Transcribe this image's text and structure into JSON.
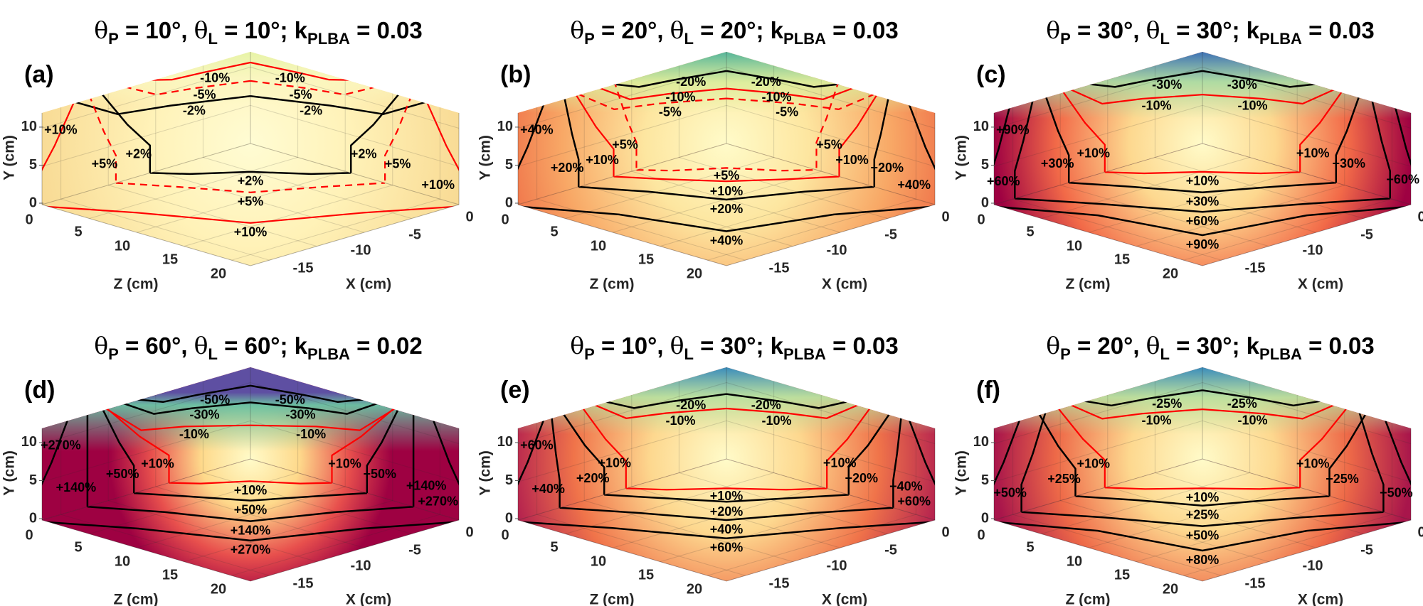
{
  "title_symbols": {
    "theta": "θ",
    "p": "P",
    "l": "L",
    "k": "k",
    "plba": "PLBA",
    "eq": " = ",
    "comma": ", ",
    "semicolon": "; "
  },
  "chart_data": {
    "type": "contour",
    "description_units": "percent change contours on 3D box walls and floor",
    "axes": {
      "y_label": "Y (cm)",
      "z_label": "Z (cm)",
      "x_label": "X (cm)",
      "y_ticks": [
        "0",
        "5",
        "10"
      ],
      "z_ticks": [
        "0",
        "5",
        "10",
        "15",
        "20"
      ],
      "x_ticks": [
        "0",
        "-5",
        "-10",
        "-15"
      ],
      "y_range": [
        0,
        12
      ],
      "z_range": [
        0,
        22
      ],
      "x_range": [
        0,
        -22
      ]
    },
    "panels": [
      {
        "id": "a",
        "label": "(a)",
        "theta_p": "10°",
        "theta_l": "10°",
        "k_plba": "0.03",
        "colors": {
          "center": "#fffcd3",
          "mid": "#fff2b8",
          "warm": "#f9dd98",
          "edge": "#f4cd85",
          "top": "#e6f3a6",
          "top_fade": "#f9f7c0"
        },
        "contours": [
          {
            "level": "-10%",
            "kind": "neg",
            "color": "#ff0000",
            "dashed": false,
            "y_center_cm": 10.6,
            "y_end_cm": 12.3,
            "reach_cm": 11,
            "labels": [
              "left",
              "right"
            ]
          },
          {
            "level": "-5%",
            "kind": "neg",
            "color": "#ff0000",
            "dashed": true,
            "y_center_cm": 8.2,
            "y_end_cm": 12.2,
            "reach_cm": 13.2,
            "labels": [
              "left",
              "right"
            ]
          },
          {
            "level": "-2%",
            "kind": "neg",
            "color": "#000000",
            "dashed": false,
            "y_center_cm": 6.2,
            "y_end_cm": 12.3,
            "reach_cm": 18.7,
            "labels": [
              "left",
              "right"
            ]
          },
          {
            "level": "+2%",
            "kind": "pos",
            "color": "#000000",
            "dashed": false,
            "wall_cm": 10.6,
            "lean": 1.5,
            "floor_cm": 5.1,
            "labels": [
              "left",
              "floor",
              "right"
            ]
          },
          {
            "level": "+5%",
            "kind": "pos",
            "color": "#ff0000",
            "dashed": true,
            "wall_cm": 14.2,
            "lean": 1.2,
            "floor_cm": 8.8,
            "labels": [
              "left",
              "floor",
              "right"
            ]
          },
          {
            "level": "+10%",
            "kind": "pos",
            "color": "#ff0000",
            "dashed": false,
            "wall_cm": 22.5,
            "lean": 0.82,
            "floor_cm": 14.3,
            "labels": [
              "left",
              "floor",
              "right"
            ]
          }
        ]
      },
      {
        "id": "b",
        "label": "(b)",
        "theta_p": "20°",
        "theta_l": "20°",
        "k_plba": "0.03",
        "colors": {
          "center": "#fffbc9",
          "mid": "#fde6a0",
          "warm": "#f8a866",
          "edge": "#ee6a45",
          "top": "#55b59b",
          "top_fade": "#d8ee9b"
        },
        "contours": [
          {
            "level": "-20%",
            "kind": "neg",
            "color": "#000000",
            "dashed": false,
            "y_center_cm": 9.5,
            "y_end_cm": 12.3,
            "reach_cm": 12.3,
            "labels": [
              "left",
              "right"
            ]
          },
          {
            "level": "-10%",
            "kind": "neg",
            "color": "#ff0000",
            "dashed": false,
            "y_center_cm": 7.2,
            "y_end_cm": 12.3,
            "reach_cm": 13.6,
            "labels": [
              "left",
              "right"
            ]
          },
          {
            "level": "-5%",
            "kind": "neg",
            "color": "#ff0000",
            "dashed": true,
            "y_center_cm": 5.9,
            "y_end_cm": 12.3,
            "reach_cm": 15.8,
            "labels": [
              "left",
              "right"
            ]
          },
          {
            "level": "+5%",
            "kind": "pos",
            "color": "#ff0000",
            "dashed": true,
            "wall_cm": 9.5,
            "lean": 1.25,
            "floor_cm": 4.4,
            "labels": [
              "left",
              "floor",
              "right"
            ]
          },
          {
            "level": "+10%",
            "kind": "pos",
            "color": "#ff0000",
            "dashed": false,
            "wall_cm": 11.9,
            "lean": 1.35,
            "floor_cm": 6.8,
            "labels": [
              "left",
              "floor",
              "right"
            ]
          },
          {
            "level": "+20%",
            "kind": "pos",
            "color": "#000000",
            "dashed": false,
            "wall_cm": 15.6,
            "lean": 1.1,
            "floor_cm": 10.1,
            "labels": [
              "left",
              "floor",
              "right"
            ]
          },
          {
            "level": "+40%",
            "kind": "pos",
            "color": "#000000",
            "dashed": false,
            "wall_cm": 22.5,
            "lean": 0.85,
            "floor_cm": 15.8,
            "labels": [
              "left",
              "floor",
              "right"
            ]
          }
        ]
      },
      {
        "id": "c",
        "label": "(c)",
        "theta_p": "30°",
        "theta_l": "30°",
        "k_plba": "0.03",
        "colors": {
          "center": "#fffbc9",
          "mid": "#fdd88f",
          "warm": "#f26a48",
          "edge": "#9e0142",
          "top": "#3d72b6",
          "top_fade": "#a6dba4"
        },
        "contours": [
          {
            "level": "-30%",
            "kind": "neg",
            "color": "#000000",
            "dashed": false,
            "y_center_cm": 9.5,
            "y_end_cm": 12.3,
            "reach_cm": 12.3,
            "labels": [
              "left",
              "right"
            ]
          },
          {
            "level": "-10%",
            "kind": "neg",
            "color": "#ff0000",
            "dashed": false,
            "y_center_cm": 6.4,
            "y_end_cm": 12.3,
            "reach_cm": 14.1,
            "labels": [
              "left",
              "right"
            ]
          },
          {
            "level": "+10%",
            "kind": "pos",
            "color": "#ff0000",
            "dashed": false,
            "wall_cm": 10.3,
            "lean": 1.45,
            "floor_cm": 5.1,
            "labels": [
              "left",
              "floor",
              "right"
            ]
          },
          {
            "level": "+30%",
            "kind": "pos",
            "color": "#000000",
            "dashed": false,
            "wall_cm": 14.1,
            "lean": 1.18,
            "floor_cm": 8.8,
            "labels": [
              "left",
              "floor",
              "right"
            ]
          },
          {
            "level": "+60%",
            "kind": "pos",
            "color": "#000000",
            "dashed": false,
            "wall_cm": 19.8,
            "lean": 0.9,
            "floor_cm": 12.3,
            "labels": [
              "left",
              "floor",
              "right"
            ]
          },
          {
            "level": "+90%",
            "kind": "pos",
            "color": "#000000",
            "dashed": false,
            "wall_cm": 22.5,
            "lean": 0.9,
            "floor_cm": 16.5,
            "labels": [
              "left",
              "floor"
            ]
          }
        ]
      },
      {
        "id": "d",
        "label": "(d)",
        "theta_p": "60°",
        "theta_l": "60°",
        "k_plba": "0.02",
        "colors": {
          "center": "#fffbc9",
          "mid": "#fed98b",
          "warm": "#e8504d",
          "edge": "#9e0142",
          "top": "#5e4fa2",
          "top_fade": "#66c2a5"
        },
        "contours": [
          {
            "level": "-50%",
            "kind": "neg",
            "color": "#000000",
            "dashed": false,
            "y_center_cm": 9.6,
            "y_end_cm": 12.3,
            "reach_cm": 12.3,
            "labels": [
              "left",
              "right"
            ]
          },
          {
            "level": "-30%",
            "kind": "neg",
            "color": "#000000",
            "dashed": false,
            "y_center_cm": 7.4,
            "y_end_cm": 12.3,
            "reach_cm": 13.6,
            "labels": [
              "left",
              "right"
            ]
          },
          {
            "level": "-10%",
            "kind": "neg",
            "color": "#ff0000",
            "dashed": false,
            "y_center_cm": 4.4,
            "y_end_cm": 12.3,
            "reach_cm": 15.4,
            "labels": [
              "left",
              "right"
            ]
          },
          {
            "level": "+10%",
            "kind": "pos",
            "color": "#ff0000",
            "dashed": false,
            "wall_cm": 8.6,
            "lean": 1.8,
            "floor_cm": 4.0,
            "labels": [
              "left",
              "floor",
              "right"
            ]
          },
          {
            "level": "+50%",
            "kind": "pos",
            "color": "#000000",
            "dashed": false,
            "wall_cm": 12.3,
            "lean": 1.28,
            "floor_cm": 7.5,
            "labels": [
              "left",
              "floor",
              "right"
            ]
          },
          {
            "level": "+140%",
            "kind": "pos",
            "color": "#000000",
            "dashed": false,
            "wall_cm": 17.2,
            "lean": 1.0,
            "floor_cm": 11.2,
            "labels": [
              "left",
              "floor",
              "right"
            ]
          },
          {
            "level": "+270%",
            "kind": "pos",
            "color": "#000000",
            "dashed": false,
            "wall_cm": 22.5,
            "lean": 0.85,
            "floor_cm": 14.7,
            "labels": [
              "left",
              "floor",
              "right"
            ]
          }
        ]
      },
      {
        "id": "e",
        "label": "(e)",
        "theta_p": "10°",
        "theta_l": "30°",
        "k_plba": "0.03",
        "colors": {
          "center": "#fffbc9",
          "mid": "#fdd88f",
          "warm": "#f0744a",
          "edge": "#b3204f",
          "top": "#3a8cbc",
          "top_fade": "#b5e1a0"
        },
        "contours": [
          {
            "level": "-20%",
            "kind": "neg",
            "color": "#000000",
            "dashed": false,
            "y_center_cm": 8.5,
            "y_end_cm": 12.3,
            "reach_cm": 13,
            "labels": [
              "left",
              "right"
            ]
          },
          {
            "level": "-10%",
            "kind": "neg",
            "color": "#ff0000",
            "dashed": false,
            "y_center_cm": 6.6,
            "y_end_cm": 12.3,
            "reach_cm": 14.1,
            "labels": [
              "left",
              "right"
            ]
          },
          {
            "level": "+10%",
            "kind": "pos",
            "color": "#ff0000",
            "dashed": false,
            "wall_cm": 10.6,
            "lean": 1.45,
            "floor_cm": 5.3,
            "labels": [
              "left",
              "floor",
              "right"
            ]
          },
          {
            "level": "+20%",
            "kind": "pos",
            "color": "#000000",
            "dashed": false,
            "wall_cm": 12.9,
            "lean": 1.35,
            "floor_cm": 7.7,
            "labels": [
              "left",
              "floor",
              "right"
            ]
          },
          {
            "level": "+40%",
            "kind": "pos",
            "color": "#000000",
            "dashed": false,
            "wall_cm": 17.6,
            "lean": 1.05,
            "floor_cm": 11,
            "labels": [
              "left",
              "floor",
              "right"
            ]
          },
          {
            "level": "+60%",
            "kind": "pos",
            "color": "#000000",
            "dashed": false,
            "wall_cm": 22.5,
            "lean": 0.85,
            "floor_cm": 14.3,
            "labels": [
              "left",
              "floor",
              "right"
            ]
          }
        ]
      },
      {
        "id": "f",
        "label": "(f)",
        "theta_p": "20°",
        "theta_l": "30°",
        "k_plba": "0.03",
        "colors": {
          "center": "#fffbc9",
          "mid": "#fdd88f",
          "warm": "#ee6a48",
          "edge": "#a8154b",
          "top": "#3a8cbc",
          "top_fade": "#b5e1a0"
        },
        "contours": [
          {
            "level": "-25%",
            "kind": "neg",
            "color": "#000000",
            "dashed": false,
            "y_center_cm": 9.0,
            "y_end_cm": 12.3,
            "reach_cm": 12.8,
            "labels": [
              "left",
              "right"
            ]
          },
          {
            "level": "-10%",
            "kind": "neg",
            "color": "#ff0000",
            "dashed": false,
            "y_center_cm": 6.5,
            "y_end_cm": 12.3,
            "reach_cm": 14.1,
            "labels": [
              "left",
              "right"
            ]
          },
          {
            "level": "+10%",
            "kind": "pos",
            "color": "#ff0000",
            "dashed": false,
            "wall_cm": 10.3,
            "lean": 1.5,
            "floor_cm": 5.3,
            "labels": [
              "left",
              "floor",
              "right"
            ]
          },
          {
            "level": "+25%",
            "kind": "pos",
            "color": "#000000",
            "dashed": false,
            "wall_cm": 13.4,
            "lean": 1.3,
            "floor_cm": 8.4,
            "labels": [
              "left",
              "floor",
              "right"
            ]
          },
          {
            "level": "+50%",
            "kind": "pos",
            "color": "#000000",
            "dashed": false,
            "wall_cm": 19.1,
            "lean": 0.86,
            "floor_cm": 12.1,
            "labels": [
              "left",
              "floor",
              "right"
            ]
          },
          {
            "level": "+80%",
            "kind": "pos",
            "color": "#000000",
            "dashed": false,
            "wall_cm": 22.5,
            "lean": 0.85,
            "floor_cm": 16.5,
            "labels": [
              "floor"
            ]
          }
        ]
      }
    ]
  }
}
